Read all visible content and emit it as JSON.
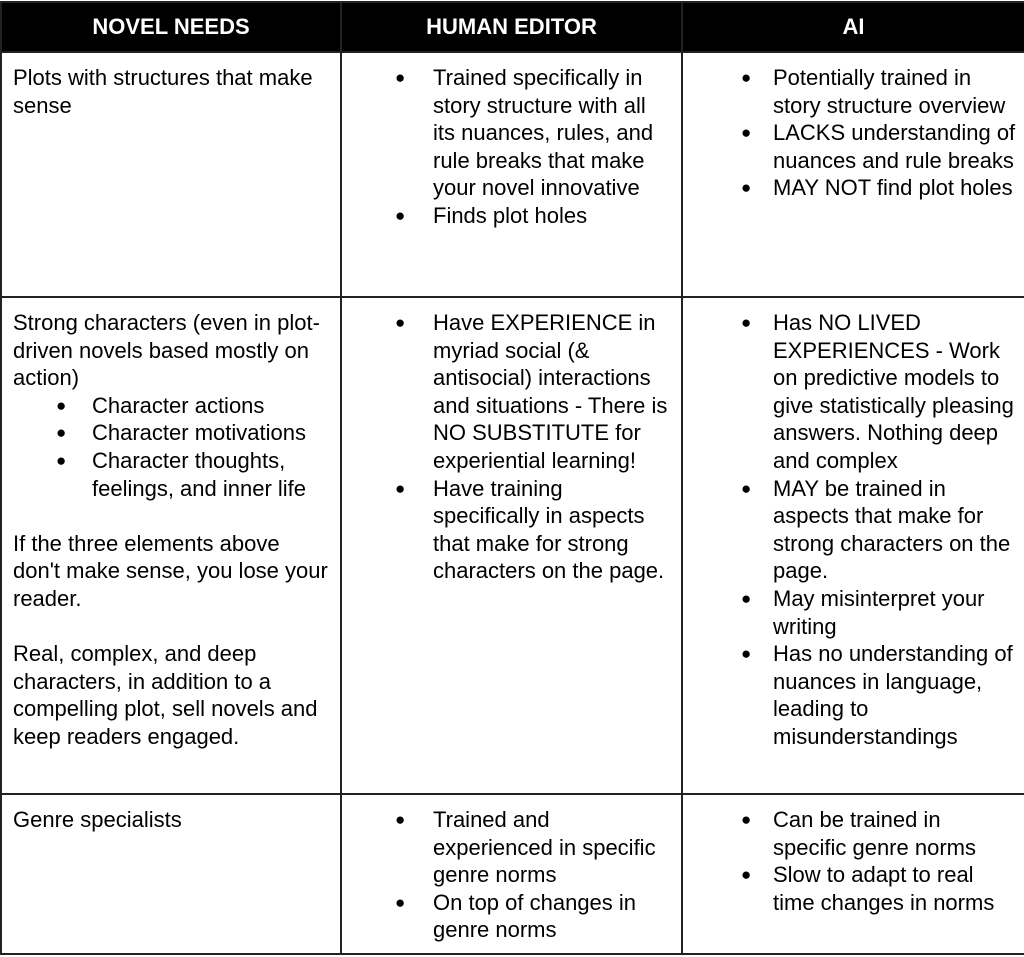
{
  "headers": [
    "NOVEL NEEDS",
    "HUMAN EDITOR",
    "AI"
  ],
  "rows": [
    {
      "needs": {
        "text": "Plots with structures that make sense"
      },
      "human": [
        "Trained specifically in story structure with all its nuances, rules, and rule breaks that make your novel innovative",
        "Finds plot holes"
      ],
      "ai": [
        "Potentially trained in story structure overview",
        "LACKS understanding of nuances and rule breaks",
        "MAY NOT find plot holes"
      ]
    },
    {
      "needs": {
        "text": "Strong characters (even in plot-driven novels based mostly on action)",
        "subitems": [
          "Character actions",
          "Character motivations",
          "Character thoughts, feelings, and inner life"
        ],
        "para1": "If the three elements above don't make sense, you lose your reader.",
        "para2": "Real, complex, and deep characters, in addition to a compelling plot, sell novels and keep readers engaged."
      },
      "human": [
        "Have EXPERIENCE in myriad social (& antisocial) interactions and situations - There is NO SUBSTITUTE for experiential learning!",
        "Have training specifically in aspects that make for strong characters on the page."
      ],
      "ai": [
        "Has NO LIVED EXPERIENCES - Work on predictive models to give statistically pleasing answers. Nothing deep and complex",
        "MAY be trained in aspects that make for strong characters on the page.",
        "May misinterpret your writing",
        "Has no understanding of nuances in language, leading to misunderstandings"
      ]
    },
    {
      "needs": {
        "text": "Genre specialists"
      },
      "human": [
        "Trained and experienced in specific genre norms",
        "On top of changes in genre norms"
      ],
      "ai": [
        "Can be trained in specific genre norms",
        "Slow to adapt to real time changes in norms"
      ]
    }
  ]
}
